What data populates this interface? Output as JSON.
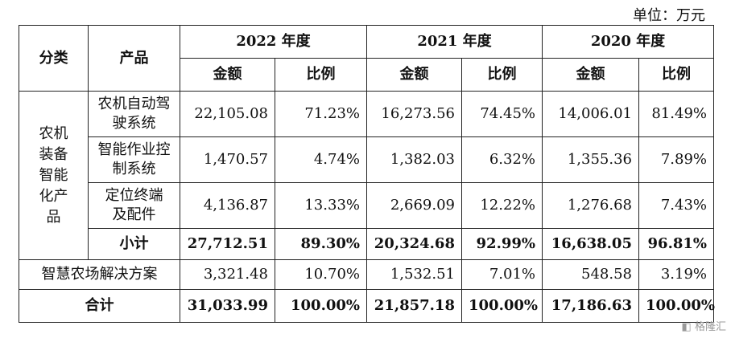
{
  "unit": "单位：万元",
  "headers": {
    "category": "分类",
    "product": "产品",
    "years": [
      "2022 年度",
      "2021 年度",
      "2020 年度"
    ],
    "amount": "金额",
    "ratio": "比例"
  },
  "rows": [
    {
      "label": "农机自动驾驶系统",
      "values": [
        "22,105.08",
        "71.23%",
        "16,273.56",
        "74.45%",
        "14,006.01",
        "81.49%"
      ]
    },
    {
      "label": "智能作业控制系统",
      "values": [
        "1,470.57",
        "4.74%",
        "1,382.03",
        "6.32%",
        "1,355.36",
        "7.89%"
      ]
    },
    {
      "label": "定位终端及配件",
      "values": [
        "4,136.87",
        "13.33%",
        "2,669.09",
        "12.22%",
        "1,276.68",
        "7.43%"
      ]
    }
  ],
  "group_category": "农机装备智能化产品",
  "subtotal": {
    "label": "小计",
    "values": [
      "27,712.51",
      "89.30%",
      "20,324.68",
      "92.99%",
      "16,638.05",
      "96.81%"
    ]
  },
  "smart_farm": {
    "label": "智慧农场解决方案",
    "values": [
      "3,321.48",
      "10.70%",
      "1,532.51",
      "7.01%",
      "548.58",
      "3.19%"
    ]
  },
  "total": {
    "label": "合计",
    "values": [
      "31,033.99",
      "100.00%",
      "21,857.18",
      "100.00%",
      "17,186.63",
      "100.00%"
    ]
  },
  "watermark": "格隆汇"
}
